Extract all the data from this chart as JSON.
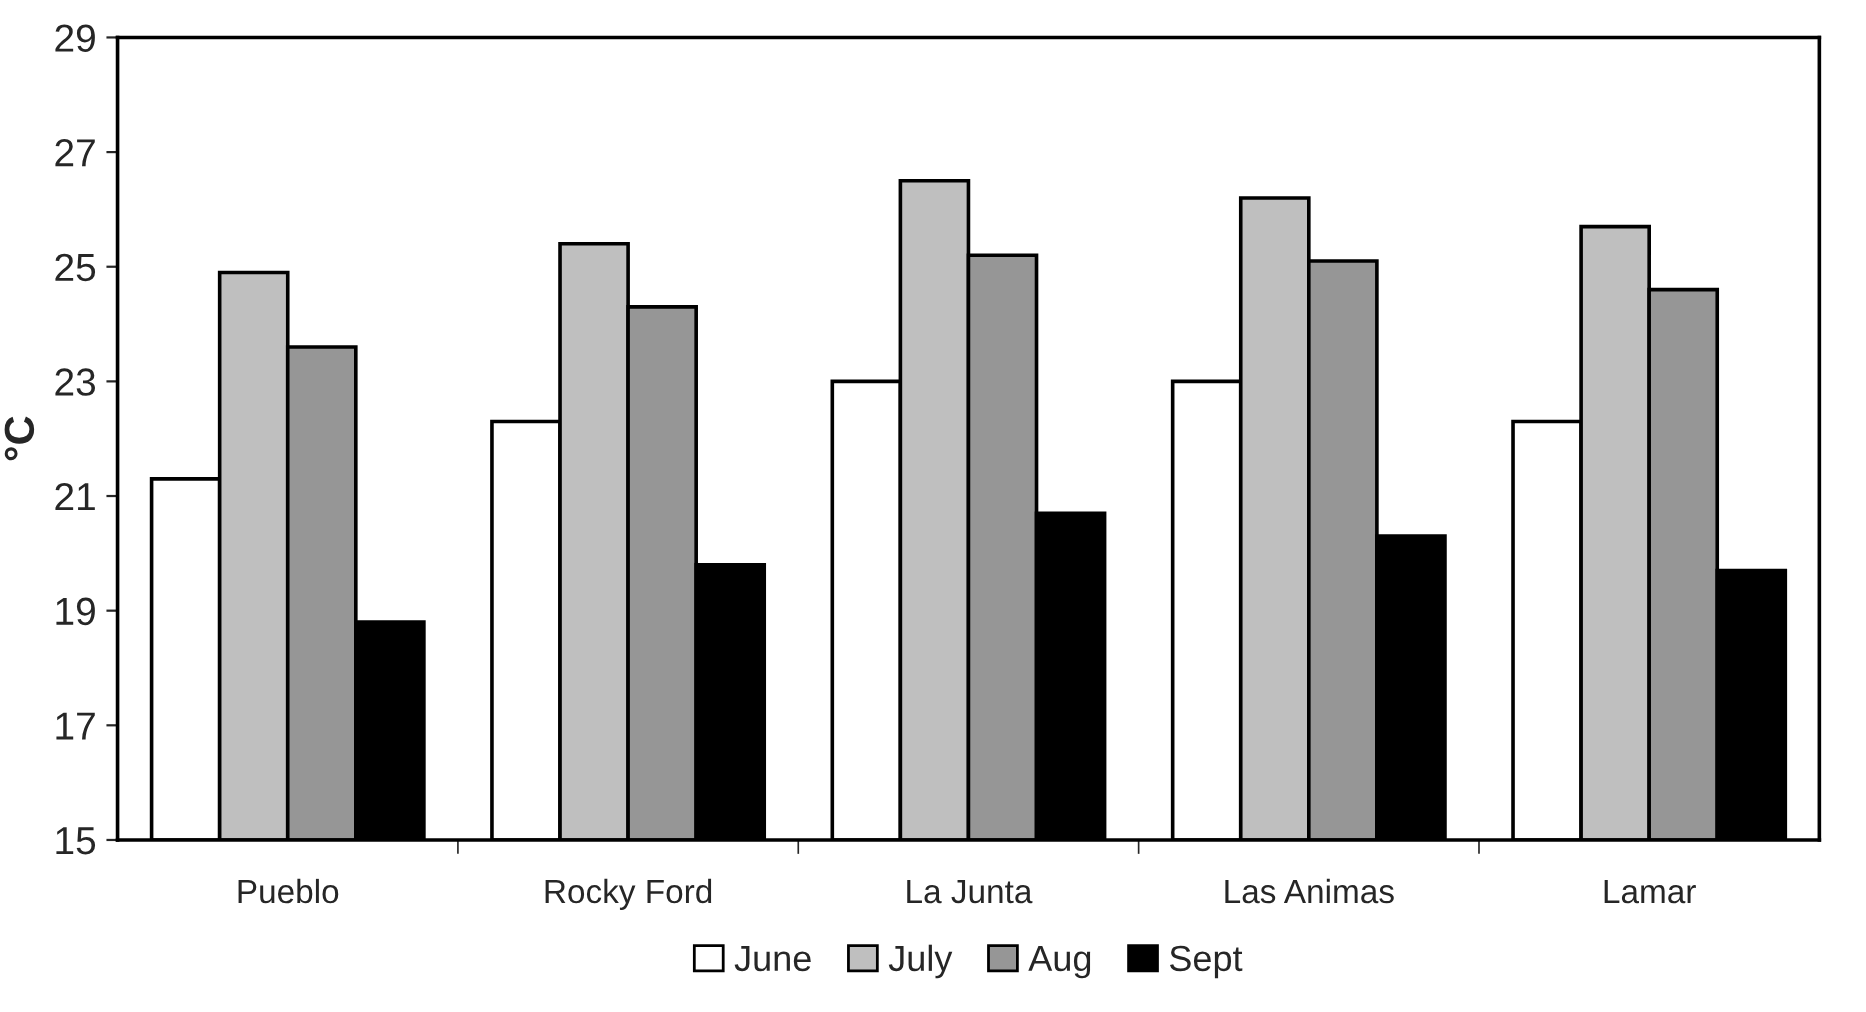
{
  "chart_data": {
    "type": "bar",
    "ylabel": "°C",
    "categories": [
      "Pueblo",
      "Rocky Ford",
      "La Junta",
      "Las Animas",
      "Lamar"
    ],
    "series": [
      {
        "name": "June",
        "color": "#ffffff",
        "values": [
          21.3,
          22.3,
          23.0,
          23.0,
          22.3
        ]
      },
      {
        "name": "July",
        "color": "#bfbfbf",
        "values": [
          24.9,
          25.4,
          26.5,
          26.2,
          25.7
        ]
      },
      {
        "name": "Aug",
        "color": "#969696",
        "values": [
          23.6,
          24.3,
          25.2,
          25.1,
          24.6
        ]
      },
      {
        "name": "Sept",
        "color": "#000000",
        "values": [
          18.8,
          19.8,
          20.7,
          20.3,
          19.7
        ]
      }
    ],
    "ylim": [
      15,
      29
    ],
    "yticks": [
      15,
      17,
      19,
      21,
      23,
      25,
      27,
      29
    ],
    "grid": false,
    "legend": "bottom"
  }
}
